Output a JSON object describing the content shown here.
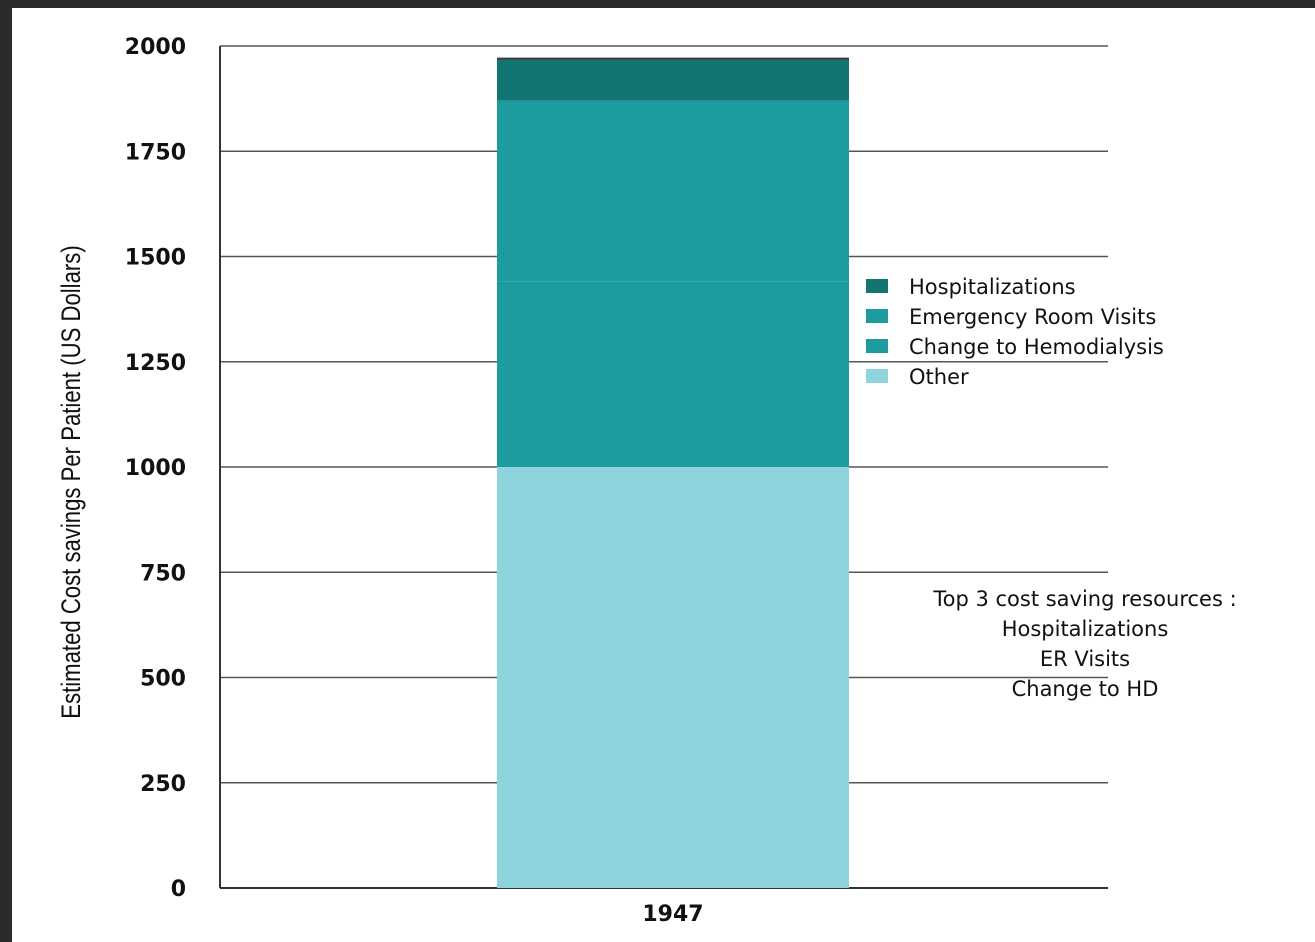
{
  "chart_data": {
    "type": "bar",
    "stacked": true,
    "categories": [
      "1947"
    ],
    "series": [
      {
        "name": "Other",
        "values": [
          1000
        ],
        "color": "#8cd3db"
      },
      {
        "name": "Change to Hemodialysis",
        "values": [
          440
        ],
        "color": "#1c9c9e"
      },
      {
        "name": "Emergency Room Visits",
        "values": [
          430
        ],
        "color": "#1c9c9e"
      },
      {
        "name": "Hospitalizations",
        "values": [
          100
        ],
        "color": "#137572"
      }
    ],
    "ylabel": "Estimated Cost savings Per Patient (US Dollars)",
    "xlabel": "",
    "ylim": [
      0,
      2000
    ],
    "yticks": [
      "0",
      "250",
      "500",
      "750",
      "1000",
      "1250",
      "1500",
      "1750",
      "2000"
    ],
    "grid": true,
    "legend": {
      "position": "right",
      "entries": [
        {
          "label": "Hospitalizations",
          "color": "#137572"
        },
        {
          "label": "Emergency Room Visits",
          "color": "#1c9c9e"
        },
        {
          "label": "Change to Hemodialysis",
          "color": "#1c9c9e"
        },
        {
          "label": "Other",
          "color": "#8cd3db"
        }
      ]
    },
    "annotation": [
      "Top 3 cost saving resources :",
      "Hospitalizations",
      "ER Visits",
      "Change to HD"
    ]
  }
}
